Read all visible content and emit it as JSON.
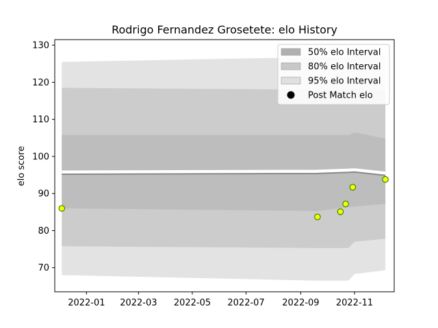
{
  "chart_data": {
    "type": "line",
    "title": "Rodrigo Fernandez Grosetete: elo History",
    "xlabel": "",
    "ylabel": "elo score",
    "xlim": [
      "2021-11-26",
      "2022-12-16"
    ],
    "ylim": [
      63.5,
      131.5
    ],
    "x_ticks": [
      "2022-01-01",
      "2022-03-01",
      "2022-05-01",
      "2022-07-01",
      "2022-09-01",
      "2022-11-01"
    ],
    "x_tick_labels": [
      "2022-01",
      "2022-03",
      "2022-05",
      "2022-07",
      "2022-09",
      "2022-11"
    ],
    "y_ticks": [
      70,
      80,
      90,
      100,
      110,
      120,
      130
    ],
    "grid": false,
    "legend_position": "top-right",
    "series": [
      {
        "name": "95% elo Interval",
        "kind": "band",
        "color": "#e3e3e3",
        "x": [
          "2021-12-04",
          "2022-09-20",
          "2022-10-25",
          "2022-11-01",
          "2022-12-06"
        ],
        "lower": [
          68.0,
          66.5,
          66.5,
          68.3,
          69.3
        ],
        "upper": [
          125.5,
          126.8,
          126.8,
          127.3,
          127.3
        ]
      },
      {
        "name": "80% elo Interval",
        "kind": "band",
        "color": "#cccccc",
        "x": [
          "2021-12-04",
          "2022-09-20",
          "2022-10-25",
          "2022-11-01",
          "2022-12-06"
        ],
        "lower": [
          75.8,
          75.3,
          75.3,
          77.0,
          77.8
        ],
        "upper": [
          118.5,
          118.0,
          118.0,
          118.5,
          117.5
        ]
      },
      {
        "name": "50% elo Interval",
        "kind": "band",
        "color": "#bdbdbd",
        "x": [
          "2021-12-04",
          "2022-09-20",
          "2022-10-25",
          "2022-11-01",
          "2022-12-06"
        ],
        "lower": [
          86.0,
          85.3,
          86.3,
          86.5,
          87.2
        ],
        "upper": [
          105.8,
          105.8,
          105.8,
          106.5,
          104.8
        ]
      },
      {
        "name": "Mean elo",
        "kind": "line",
        "color": "#888888",
        "x": [
          "2021-12-04",
          "2022-09-20",
          "2022-10-25",
          "2022-11-01",
          "2022-12-06"
        ],
        "values": [
          95.2,
          95.4,
          95.7,
          95.8,
          94.9
        ]
      },
      {
        "name": "Post Match elo",
        "kind": "scatter",
        "fill": "#ffff00",
        "edge": "#2a8a00",
        "x": [
          "2021-12-04",
          "2022-09-20",
          "2022-10-16",
          "2022-10-22",
          "2022-10-30",
          "2022-12-06"
        ],
        "values": [
          86.0,
          83.7,
          85.1,
          87.2,
          91.7,
          93.8
        ]
      }
    ],
    "legend": [
      {
        "label": "50% elo Interval",
        "color": "#b0b0b0",
        "marker": "patch"
      },
      {
        "label": "80% elo Interval",
        "color": "#c8c8c8",
        "marker": "patch"
      },
      {
        "label": "95% elo Interval",
        "color": "#e0e0e0",
        "marker": "patch"
      },
      {
        "label": "Post Match elo",
        "color": "#000000",
        "marker": "circle"
      }
    ]
  }
}
